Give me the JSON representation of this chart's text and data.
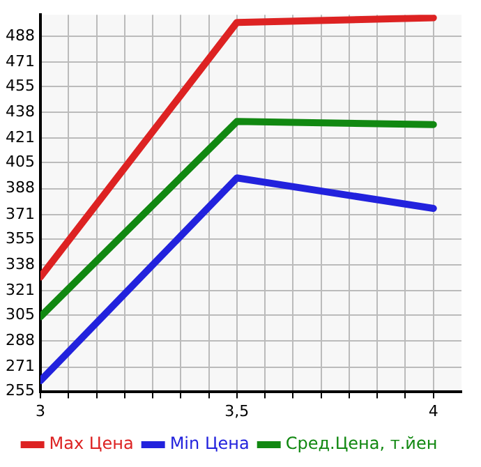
{
  "chart_data": {
    "type": "line",
    "x": [
      3,
      3.5,
      4
    ],
    "series": [
      {
        "name": "Max Цена",
        "color": "#dd2222",
        "values": [
          330,
          497,
          500
        ]
      },
      {
        "name": "Min Цена",
        "color": "#2222dd",
        "values": [
          262,
          395,
          375
        ]
      },
      {
        "name": "Сред.Цена, т.йен",
        "color": "#118811",
        "values": [
          304,
          432,
          430
        ]
      }
    ],
    "xlim": [
      3,
      4.0714
    ],
    "xticks": [
      3,
      {
        "value": 3.0714,
        "label": null
      },
      {
        "value": 3.1429,
        "label": null
      },
      {
        "value": 3.2143,
        "label": null
      },
      {
        "value": 3.2857,
        "label": null
      },
      {
        "value": 3.3571,
        "label": null
      },
      {
        "value": 3.4286,
        "label": null
      },
      {
        "value": 3.5,
        "label": "3,5"
      },
      {
        "value": 3.5714,
        "label": null
      },
      {
        "value": 3.6429,
        "label": null
      },
      {
        "value": 3.7143,
        "label": null
      },
      {
        "value": 3.7857,
        "label": null
      },
      {
        "value": 3.8571,
        "label": null
      },
      {
        "value": 3.9286,
        "label": null
      },
      4
    ],
    "ylim": [
      255,
      502
    ],
    "yticks": [
      255,
      271,
      288,
      305,
      321,
      338,
      355,
      371,
      388,
      405,
      421,
      438,
      455,
      471,
      488
    ],
    "grid": true,
    "legend": "bottom",
    "marker": "none",
    "line_style": "solid"
  }
}
